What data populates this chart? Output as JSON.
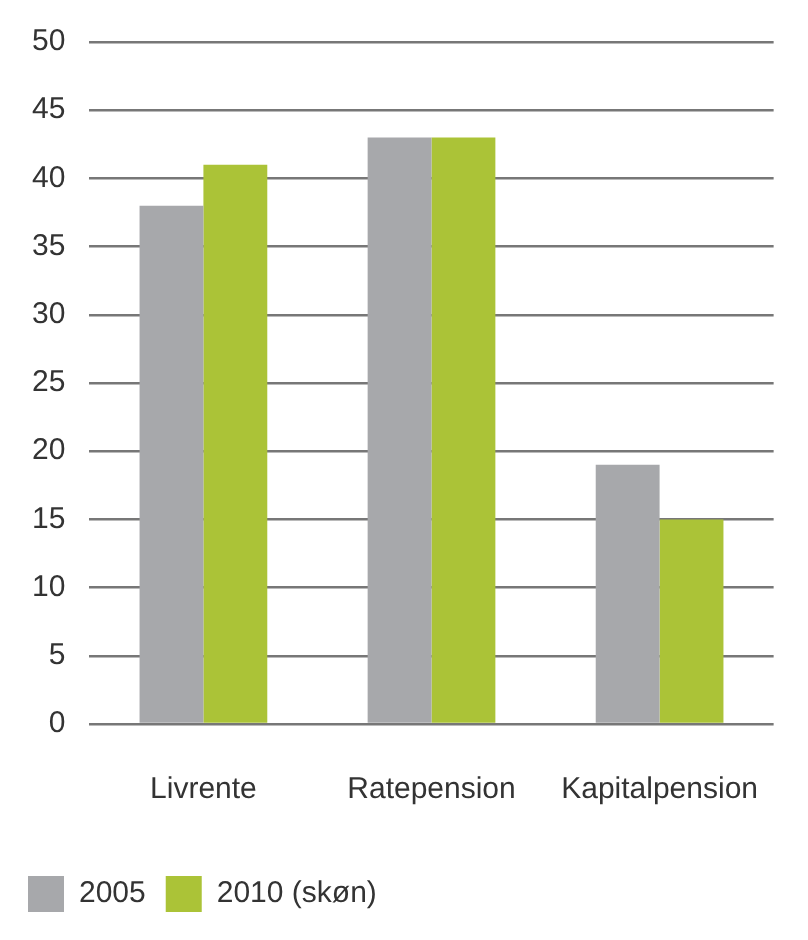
{
  "chart_data": {
    "type": "bar",
    "categories": [
      "Livrente",
      "Ratepension",
      "Kapitalpension"
    ],
    "series": [
      {
        "name": "2005",
        "color": "#a7a8ab",
        "values": [
          38,
          43,
          19
        ]
      },
      {
        "name": "2010 (skøn)",
        "color": "#abc337",
        "values": [
          41,
          43,
          15
        ]
      }
    ],
    "ylim": [
      0,
      50
    ],
    "yticks": [
      0,
      5,
      10,
      15,
      20,
      25,
      30,
      35,
      40,
      45,
      50
    ],
    "grid": "y",
    "legend": "bottom left"
  }
}
